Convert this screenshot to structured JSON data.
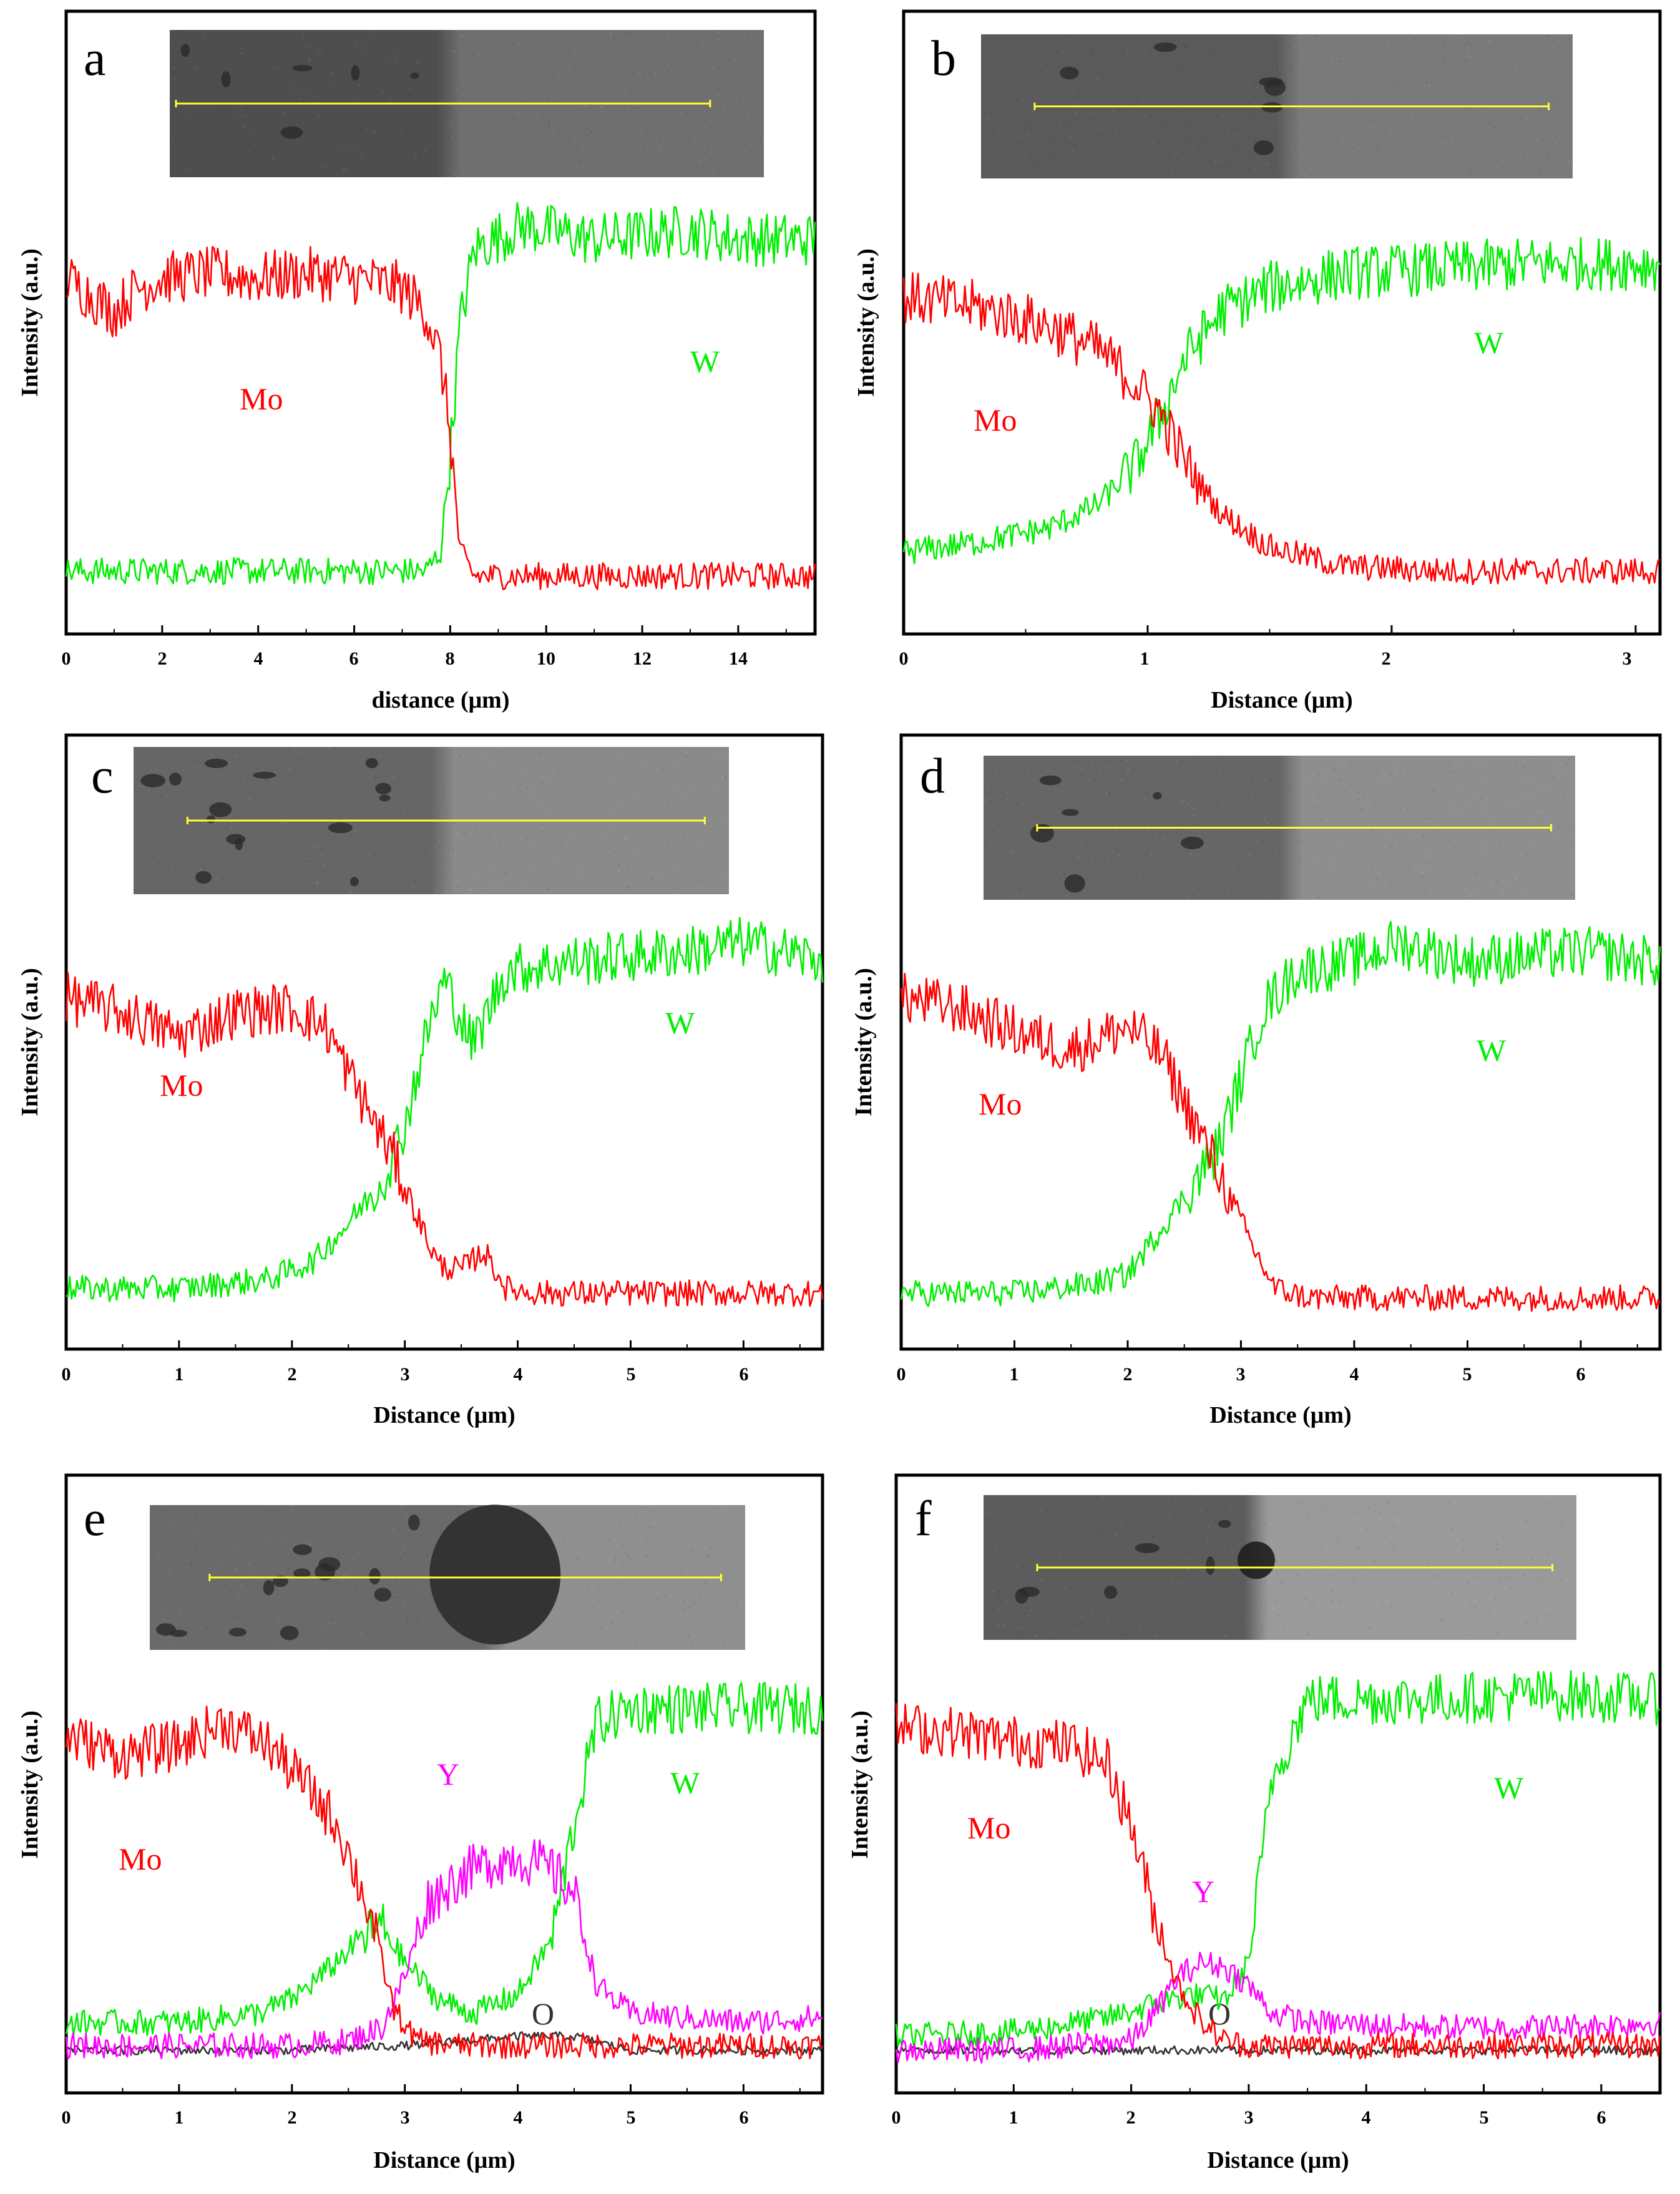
{
  "colors": {
    "Mo": "#ff0000",
    "W": "#00ee00",
    "Y": "#ff00ff",
    "O": "#333333",
    "scan_line": "#ffff33"
  },
  "chart_data": [
    {
      "panel": "a",
      "type": "line",
      "xlabel": "distance (μm)",
      "ylabel": "Intensity (a.u.)",
      "xlim": [
        0,
        15.6
      ],
      "ylim": [
        0,
        1
      ],
      "xticks": [
        0,
        2,
        4,
        6,
        8,
        10,
        12,
        14
      ],
      "xtick_labels": [
        "0",
        "2",
        "4",
        "6",
        "8",
        "10",
        "12",
        "14"
      ],
      "series": [
        {
          "name": "Mo",
          "label": "Mo",
          "color": "#ff0000",
          "x": [
            0,
            1,
            1.5,
            2,
            3,
            4,
            5,
            6,
            7,
            7.5,
            7.8,
            8.0,
            8.2,
            8.5,
            10,
            12,
            14,
            15.6
          ],
          "y": [
            0.72,
            0.65,
            0.7,
            0.72,
            0.73,
            0.72,
            0.73,
            0.72,
            0.7,
            0.65,
            0.55,
            0.4,
            0.15,
            0.1,
            0.1,
            0.1,
            0.1,
            0.1
          ]
        },
        {
          "name": "W",
          "label": "W",
          "color": "#00ee00",
          "x": [
            0,
            2,
            4,
            6,
            7.5,
            7.8,
            8.0,
            8.2,
            8.5,
            9.5,
            11,
            13,
            14,
            15.6
          ],
          "y": [
            0.11,
            0.11,
            0.11,
            0.11,
            0.11,
            0.15,
            0.35,
            0.62,
            0.78,
            0.83,
            0.8,
            0.82,
            0.8,
            0.8
          ]
        }
      ],
      "annotations": [
        {
          "text": "Mo",
          "x": 5.0,
          "y": 0.47,
          "color": "#ff0000"
        },
        {
          "text": "W",
          "x": 13.0,
          "y": 0.57,
          "color": "#00ee00"
        }
      ],
      "inset": {
        "shade_left": "#4e4e4e",
        "shade_right": "#6f6f6f",
        "boundary_fraction": 0.47,
        "scan_start": 0.0,
        "scan_end": 0.92
      }
    },
    {
      "panel": "b",
      "type": "line",
      "xlabel": "Distance (μm)",
      "ylabel": "Intensity (a.u.)",
      "xlim": [
        0,
        3.1
      ],
      "ylim": [
        0,
        1
      ],
      "xticks": [
        0,
        1,
        2,
        3
      ],
      "xtick_labels": [
        "0",
        "1",
        "2",
        "3"
      ],
      "series": [
        {
          "name": "Mo",
          "label": "Mo",
          "color": "#ff0000",
          "x": [
            0,
            0.3,
            0.6,
            0.8,
            0.95,
            1.05,
            1.15,
            1.3,
            1.5,
            1.8,
            2.2,
            2.6,
            3.1
          ],
          "y": [
            0.68,
            0.66,
            0.62,
            0.57,
            0.5,
            0.44,
            0.34,
            0.23,
            0.16,
            0.12,
            0.11,
            0.11,
            0.11
          ]
        },
        {
          "name": "W",
          "label": "W",
          "color": "#00ee00",
          "x": [
            0,
            0.3,
            0.6,
            0.8,
            0.95,
            1.05,
            1.15,
            1.3,
            1.5,
            1.8,
            2.2,
            2.6,
            3.1
          ],
          "y": [
            0.15,
            0.17,
            0.2,
            0.25,
            0.33,
            0.43,
            0.55,
            0.65,
            0.7,
            0.73,
            0.74,
            0.75,
            0.75
          ]
        }
      ],
      "annotations": [
        {
          "text": "Mo",
          "x": 0.4,
          "y": 0.45,
          "color": "#ff0000"
        },
        {
          "text": "W",
          "x": 2.35,
          "y": 0.6,
          "color": "#00ee00"
        }
      ],
      "inset": {
        "shade_left": "#5a5a5a",
        "shade_right": "#7a7a7a",
        "boundary_fraction": 0.52,
        "scan_start": 0.08,
        "scan_end": 0.97
      }
    },
    {
      "panel": "c",
      "type": "line",
      "xlabel": "Distance (μm)",
      "ylabel": "Intensity (a.u.)",
      "xlim": [
        0,
        6.7
      ],
      "ylim": [
        0,
        1
      ],
      "xticks": [
        0,
        1,
        2,
        3,
        4,
        5,
        6
      ],
      "xtick_labels": [
        "0",
        "1",
        "2",
        "3",
        "4",
        "5",
        "6"
      ],
      "series": [
        {
          "name": "Mo",
          "label": "Mo",
          "color": "#ff0000",
          "x": [
            0,
            0.5,
            1.0,
            1.5,
            2.0,
            2.3,
            2.5,
            2.7,
            2.9,
            3.1,
            3.3,
            3.5,
            3.7,
            3.9,
            4.2,
            5.0,
            6.0,
            6.7
          ],
          "y": [
            0.72,
            0.69,
            0.64,
            0.69,
            0.7,
            0.66,
            0.56,
            0.47,
            0.38,
            0.26,
            0.15,
            0.14,
            0.18,
            0.1,
            0.09,
            0.09,
            0.09,
            0.09
          ]
        },
        {
          "name": "W",
          "label": "W",
          "color": "#00ee00",
          "x": [
            0,
            1.0,
            1.8,
            2.2,
            2.5,
            2.8,
            3.0,
            3.2,
            3.35,
            3.6,
            3.9,
            4.5,
            5.5,
            6.0,
            6.7
          ],
          "y": [
            0.1,
            0.1,
            0.12,
            0.16,
            0.24,
            0.33,
            0.45,
            0.65,
            0.76,
            0.62,
            0.78,
            0.8,
            0.82,
            0.84,
            0.8
          ]
        }
      ],
      "annotations": [
        {
          "text": "Mo",
          "x": 1.05,
          "y": 0.5,
          "color": "#ff0000"
        },
        {
          "text": "W",
          "x": 5.45,
          "y": 0.63,
          "color": "#00ee00"
        }
      ],
      "inset": {
        "shade_left": "#666666",
        "shade_right": "#8a8a8a",
        "boundary_fraction": 0.52,
        "scan_start": 0.08,
        "scan_end": 0.97
      }
    },
    {
      "panel": "d",
      "type": "line",
      "xlabel": "Distance (μm)",
      "ylabel": "Intensity (a.u.)",
      "xlim": [
        0,
        6.7
      ],
      "ylim": [
        0,
        1
      ],
      "xticks": [
        0,
        1,
        2,
        3,
        4,
        5,
        6
      ],
      "xtick_labels": [
        "0",
        "1",
        "2",
        "3",
        "4",
        "5",
        "6"
      ],
      "series": [
        {
          "name": "Mo",
          "label": "Mo",
          "color": "#ff0000",
          "x": [
            0,
            0.5,
            1.0,
            1.5,
            2.0,
            2.3,
            2.5,
            2.7,
            2.9,
            3.1,
            3.3,
            3.6,
            4.0,
            5.0,
            6.0,
            6.7
          ],
          "y": [
            0.72,
            0.7,
            0.65,
            0.61,
            0.66,
            0.6,
            0.5,
            0.4,
            0.3,
            0.19,
            0.1,
            0.08,
            0.08,
            0.08,
            0.08,
            0.08
          ]
        },
        {
          "name": "W",
          "label": "W",
          "color": "#00ee00",
          "x": [
            0,
            1.0,
            1.7,
            2.0,
            2.3,
            2.6,
            2.8,
            3.0,
            3.2,
            3.5,
            4.0,
            4.4,
            5.0,
            6.0,
            6.6
          ],
          "y": [
            0.09,
            0.09,
            0.11,
            0.13,
            0.23,
            0.33,
            0.4,
            0.55,
            0.7,
            0.78,
            0.8,
            0.84,
            0.8,
            0.82,
            0.8
          ]
        }
      ],
      "annotations": [
        {
          "text": "Mo",
          "x": 0.95,
          "y": 0.47,
          "color": "#ff0000"
        },
        {
          "text": "W",
          "x": 5.2,
          "y": 0.58,
          "color": "#00ee00"
        }
      ],
      "inset": {
        "shade_left": "#666666",
        "shade_right": "#8e8e8e",
        "boundary_fraction": 0.52,
        "scan_start": 0.08,
        "scan_end": 0.97
      }
    },
    {
      "panel": "e",
      "type": "line",
      "xlabel": "Distance (μm)",
      "ylabel": "Intensity (a.u.)",
      "xlim": [
        0,
        6.7
      ],
      "ylim": [
        0,
        1
      ],
      "xticks": [
        0,
        1,
        2,
        3,
        4,
        5,
        6
      ],
      "xtick_labels": [
        "0",
        "1",
        "2",
        "3",
        "4",
        "5",
        "6"
      ],
      "series": [
        {
          "name": "Mo",
          "label": "Mo",
          "color": "#ff0000",
          "x": [
            0,
            0.5,
            1.0,
            1.4,
            1.8,
            2.1,
            2.4,
            2.7,
            2.9,
            3.1,
            3.5,
            4.0,
            5.0,
            6.0,
            6.6
          ],
          "y": [
            0.74,
            0.7,
            0.72,
            0.77,
            0.72,
            0.64,
            0.55,
            0.35,
            0.15,
            0.08,
            0.07,
            0.07,
            0.07,
            0.07,
            0.07
          ]
        },
        {
          "name": "W",
          "label": "W",
          "color": "#00ee00",
          "x": [
            0,
            1.0,
            1.7,
            2.0,
            2.3,
            2.6,
            2.8,
            3.0,
            3.3,
            3.6,
            4.0,
            4.3,
            4.5,
            4.7,
            5.0,
            6.0,
            6.6
          ],
          "y": [
            0.12,
            0.12,
            0.14,
            0.17,
            0.23,
            0.3,
            0.33,
            0.25,
            0.17,
            0.14,
            0.18,
            0.3,
            0.55,
            0.77,
            0.8,
            0.8,
            0.8
          ]
        },
        {
          "name": "Y",
          "label": "Y",
          "color": "#ff00ff",
          "x": [
            0,
            1.0,
            2.0,
            2.5,
            2.8,
            3.0,
            3.2,
            3.5,
            3.8,
            4.0,
            4.3,
            4.5,
            4.7,
            5.0,
            6.0,
            6.6
          ],
          "y": [
            0.07,
            0.07,
            0.07,
            0.08,
            0.11,
            0.22,
            0.38,
            0.44,
            0.47,
            0.48,
            0.45,
            0.4,
            0.2,
            0.14,
            0.12,
            0.13
          ]
        },
        {
          "name": "O",
          "label": "O",
          "color": "#333333",
          "x": [
            0,
            1.0,
            2.0,
            3.0,
            3.5,
            4.0,
            4.5,
            5.0,
            6.0,
            6.6
          ],
          "y": [
            0.06,
            0.06,
            0.06,
            0.07,
            0.08,
            0.09,
            0.09,
            0.06,
            0.06,
            0.06
          ]
        }
      ],
      "annotations": [
        {
          "text": "Mo",
          "x": 0.7,
          "y": 0.38,
          "color": "#ff0000"
        },
        {
          "text": "W",
          "x": 5.5,
          "y": 0.58,
          "color": "#00ee00"
        },
        {
          "text": "Y",
          "x": 3.4,
          "y": 0.6,
          "color": "#ff00ff"
        },
        {
          "text": "O",
          "x": 4.3,
          "y": 0.01,
          "color": "#333333"
        }
      ],
      "inset": {
        "shade_left": "#6a6a6a",
        "shade_right": "#8f8f8f",
        "boundary_fraction": 0.58,
        "scan_start": 0.09,
        "scan_end": 0.97
      }
    },
    {
      "panel": "f",
      "type": "line",
      "xlabel": "Distance (μm)",
      "ylabel": "Intensity (a.u.)",
      "xlim": [
        0,
        6.5
      ],
      "ylim": [
        0,
        1
      ],
      "xticks": [
        0,
        1,
        2,
        3,
        4,
        5,
        6
      ],
      "xtick_labels": [
        "0",
        "1",
        "2",
        "3",
        "4",
        "5",
        "6"
      ],
      "series": [
        {
          "name": "Mo",
          "label": "Mo",
          "color": "#ff0000",
          "x": [
            0,
            0.5,
            1.0,
            1.5,
            1.8,
            2.0,
            2.2,
            2.4,
            2.6,
            2.8,
            3.0,
            3.5,
            4.5,
            5.5,
            6.5
          ],
          "y": [
            0.76,
            0.75,
            0.73,
            0.72,
            0.68,
            0.55,
            0.35,
            0.2,
            0.12,
            0.08,
            0.07,
            0.07,
            0.07,
            0.07,
            0.07
          ]
        },
        {
          "name": "W",
          "label": "W",
          "color": "#00ee00",
          "x": [
            0,
            1.0,
            1.8,
            2.2,
            2.5,
            2.8,
            3.0,
            3.2,
            3.5,
            4.5,
            5.5,
            6.5
          ],
          "y": [
            0.09,
            0.1,
            0.13,
            0.16,
            0.18,
            0.17,
            0.25,
            0.65,
            0.82,
            0.82,
            0.83,
            0.82
          ]
        },
        {
          "name": "Y",
          "label": "Y",
          "color": "#ff00ff",
          "x": [
            0,
            1.0,
            2.0,
            2.2,
            2.4,
            2.6,
            2.8,
            3.0,
            3.2,
            3.5,
            4.5,
            5.5,
            6.5
          ],
          "y": [
            0.06,
            0.06,
            0.08,
            0.14,
            0.22,
            0.25,
            0.24,
            0.2,
            0.14,
            0.12,
            0.11,
            0.11,
            0.12
          ]
        },
        {
          "name": "O",
          "label": "O",
          "color": "#333333",
          "x": [
            0,
            1.0,
            2.0,
            3.0,
            4.0,
            5.0,
            6.5
          ],
          "y": [
            0.06,
            0.06,
            0.06,
            0.06,
            0.06,
            0.06,
            0.06
          ]
        }
      ],
      "annotations": [
        {
          "text": "Mo",
          "x": 0.75,
          "y": 0.4,
          "color": "#ff0000"
        },
        {
          "text": "W",
          "x": 5.3,
          "y": 0.6,
          "color": "#00ee00"
        },
        {
          "text": "Y",
          "x": 2.65,
          "y": 0.32,
          "color": "#ff00ff"
        },
        {
          "text": "O",
          "x": 2.8,
          "y": 0.01,
          "color": "#333333"
        }
      ],
      "inset": {
        "shade_left": "#5c5c5c",
        "shade_right": "#9a9a9a",
        "boundary_fraction": 0.46,
        "scan_start": 0.08,
        "scan_end": 0.97
      }
    }
  ]
}
